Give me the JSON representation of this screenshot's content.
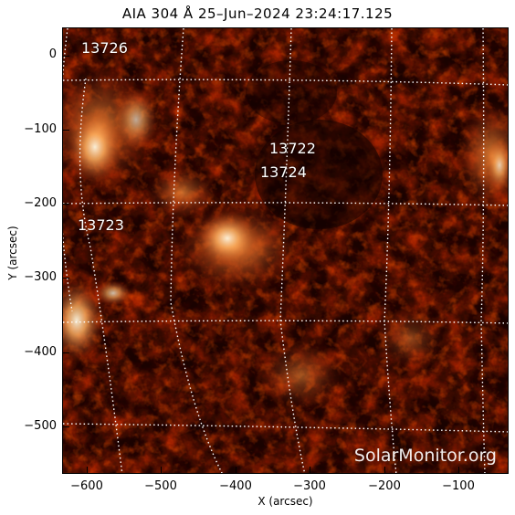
{
  "title": "AIA 304 Å 25–Jun–2024 23:24:17.125",
  "xlabel": "X (arcsec)",
  "ylabel": "Y (arcsec)",
  "watermark": "SolarMonitor.org",
  "xticks": [
    "−600",
    "−500",
    "−400",
    "−300",
    "−200",
    "−100"
  ],
  "yticks": [
    "0",
    "−100",
    "−200",
    "−300",
    "−400",
    "−500"
  ],
  "regions": [
    "13726",
    "13722",
    "13724",
    "13723"
  ],
  "colors": {
    "background": "#1a0200",
    "mid": "#8a1a00",
    "bright": "#ff9a40",
    "hot": "#ffffff"
  }
}
